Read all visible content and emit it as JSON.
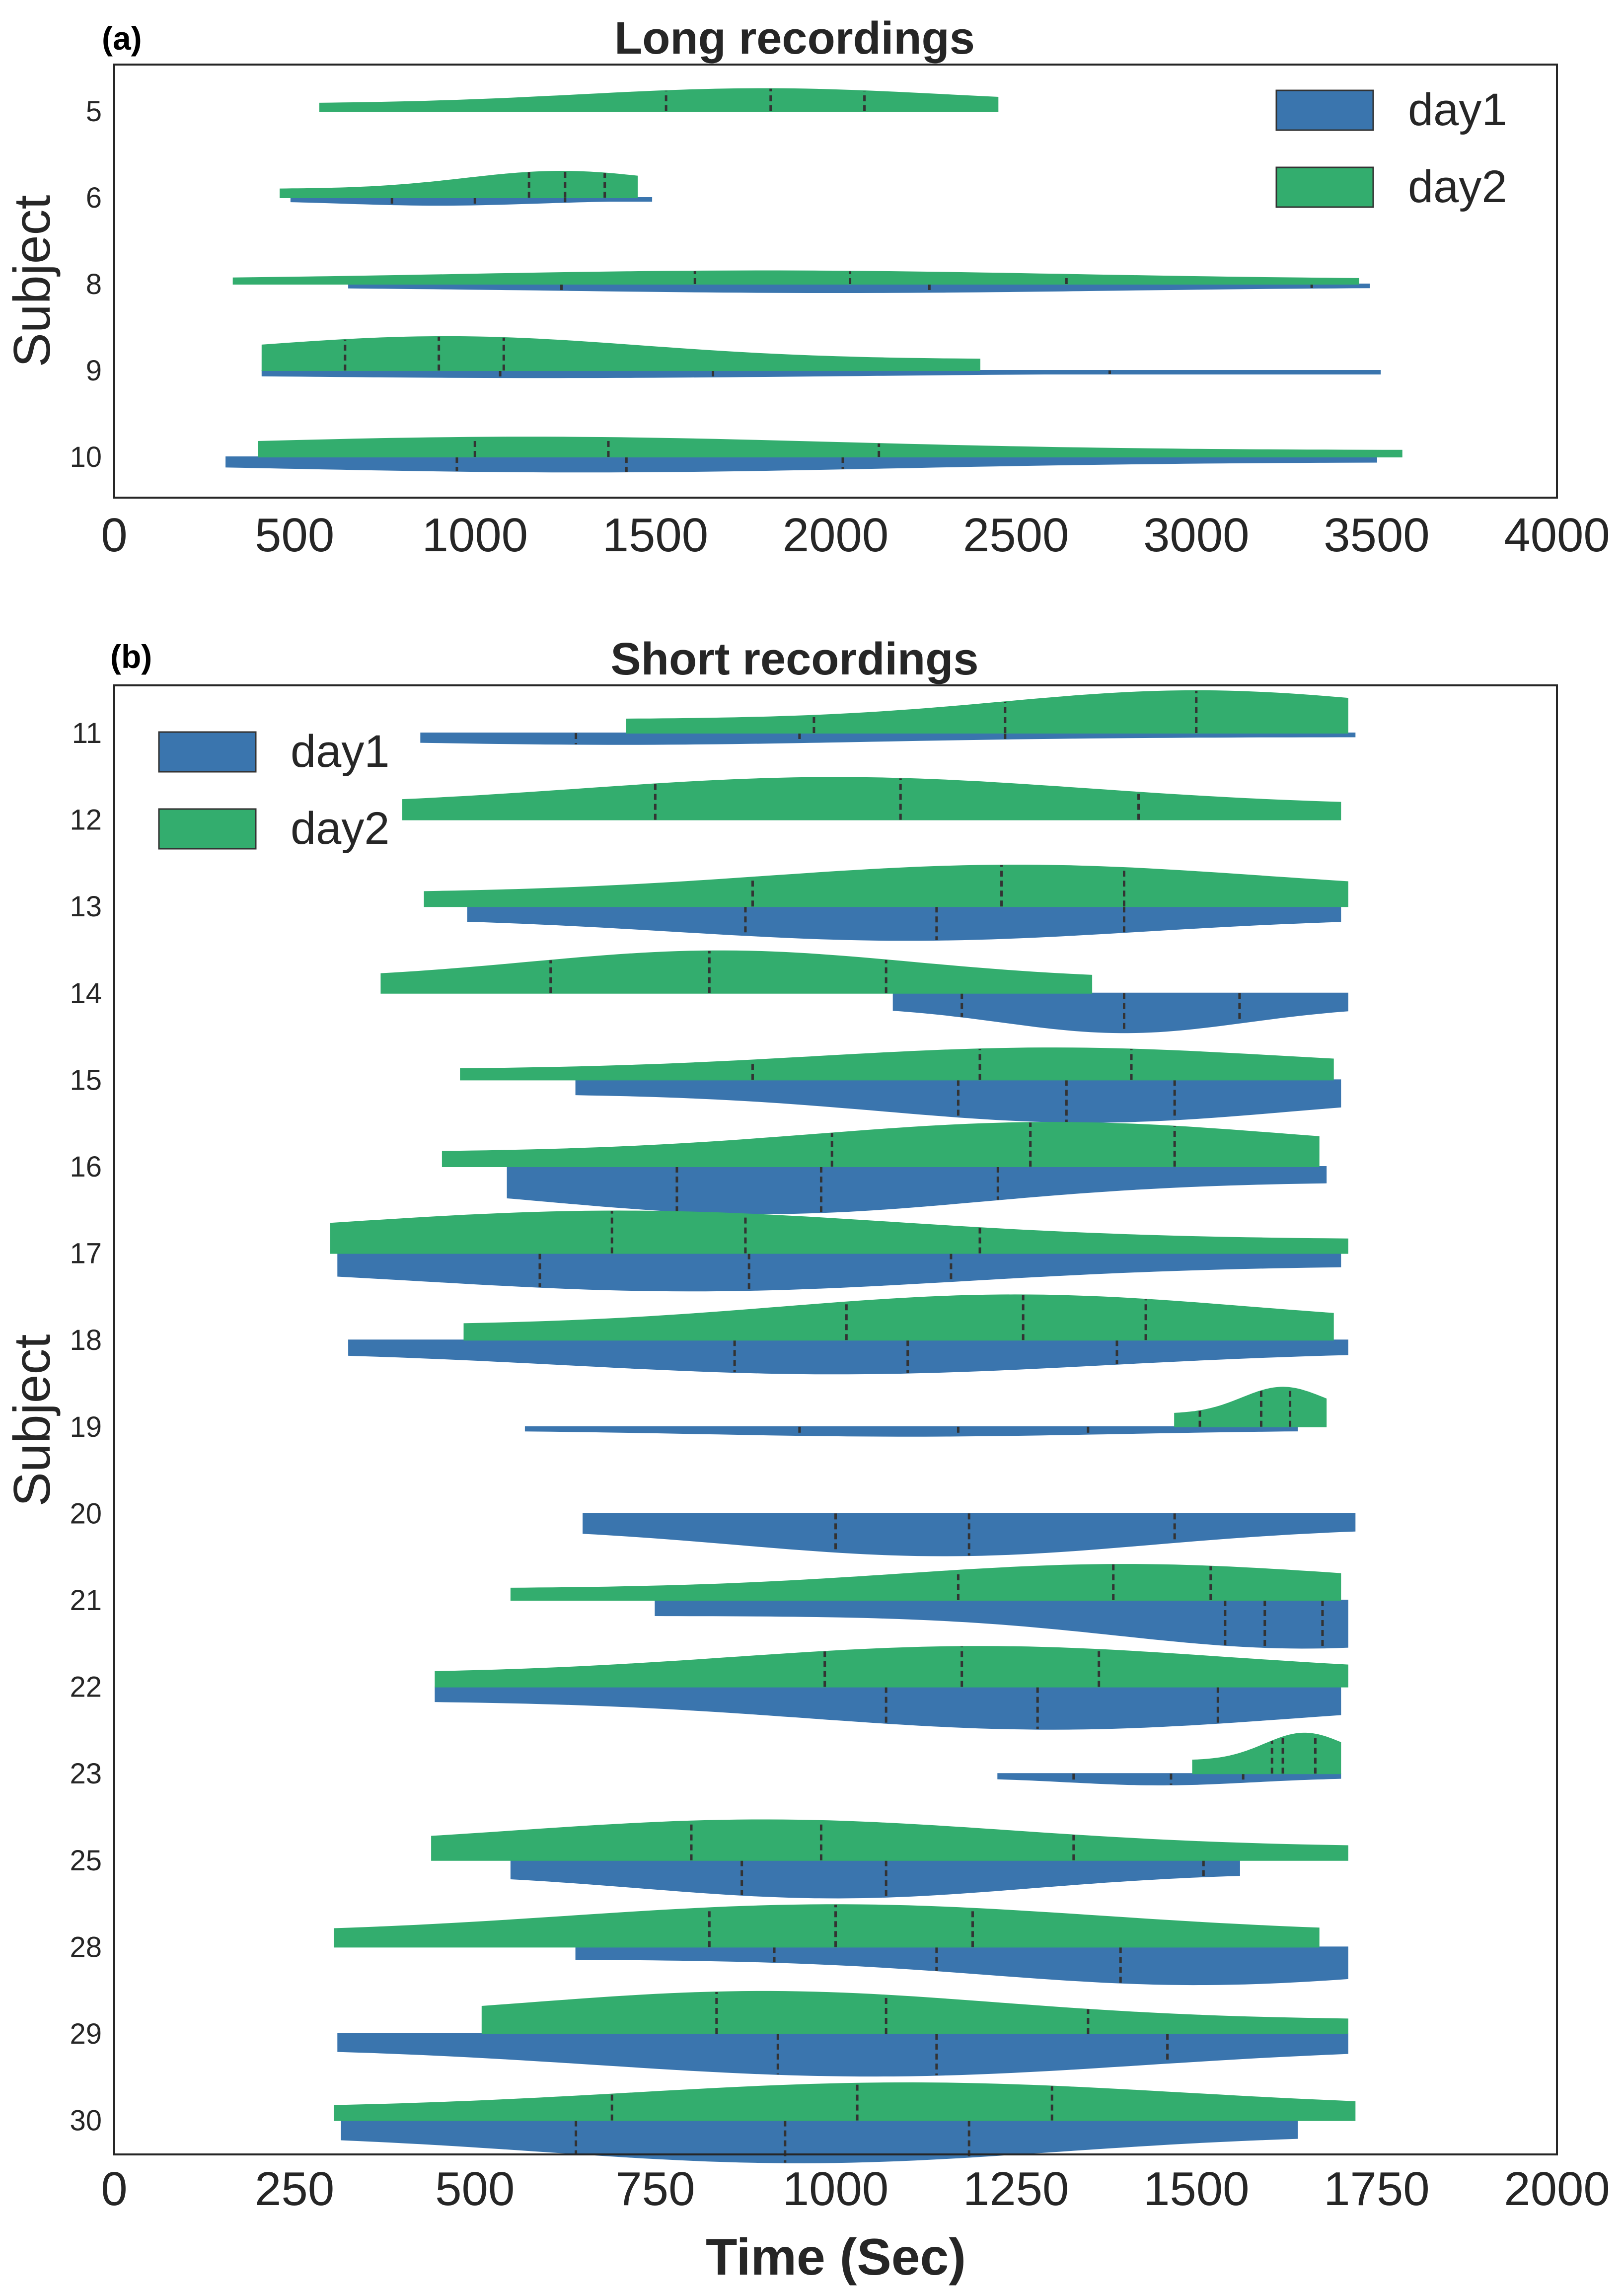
{
  "figure": {
    "xlabel": "Time (Sec)",
    "colors": {
      "day1": "#3a75ae",
      "day2": "#33ad6e",
      "quartile_line": "#333333",
      "frame": "#262626"
    }
  },
  "chart_data": [
    {
      "type": "violin",
      "panel_label": "(a)",
      "title": "Long recordings",
      "ylabel": "Subject",
      "xlabel": "",
      "xlim": [
        0,
        4000
      ],
      "xticks": [
        0,
        500,
        1000,
        1500,
        2000,
        2500,
        3000,
        3500,
        4000
      ],
      "legend": {
        "position": "top-right",
        "entries": [
          "day1",
          "day2"
        ]
      },
      "categories": [
        "5",
        "6",
        "8",
        "9",
        "10"
      ],
      "series": [
        {
          "name": "day1",
          "violins": [
            null,
            {
              "min": 490,
              "max": 1490,
              "width": 0.08,
              "peak": 900,
              "quartiles": [
                770,
                1000,
                1250
              ]
            },
            {
              "min": 650,
              "max": 3480,
              "width": 0.09,
              "peak": 2000,
              "quartiles": [
                1240,
                2260,
                3320
              ]
            },
            {
              "min": 410,
              "max": 3510,
              "width": 0.075,
              "peak": 1200,
              "quartiles": [
                1070,
                1660,
                2760
              ]
            },
            {
              "min": 310,
              "max": 3500,
              "width": 0.16,
              "peak": 1300,
              "quartiles": [
                950,
                1420,
                2020
              ]
            }
          ]
        },
        {
          "name": "day2",
          "violins": [
            {
              "min": 570,
              "max": 2450,
              "width": 0.24,
              "peak": 1800,
              "quartiles": [
                1530,
                1820,
                2080
              ]
            },
            {
              "min": 460,
              "max": 1450,
              "width": 0.28,
              "peak": 1240,
              "quartiles": [
                1150,
                1250,
                1360
              ]
            },
            {
              "min": 330,
              "max": 3450,
              "width": 0.14,
              "peak": 1800,
              "quartiles": [
                1610,
                2040,
                2640
              ]
            },
            {
              "min": 410,
              "max": 2400,
              "width": 0.36,
              "peak": 920,
              "quartiles": [
                640,
                900,
                1080
              ]
            },
            {
              "min": 400,
              "max": 3570,
              "width": 0.21,
              "peak": 1150,
              "quartiles": [
                1000,
                1370,
                2120
              ]
            }
          ]
        }
      ]
    },
    {
      "type": "violin",
      "panel_label": "(b)",
      "title": "Short recordings",
      "ylabel": "Subject",
      "xlabel": "Time (Sec)",
      "xlim": [
        0,
        2000
      ],
      "xticks": [
        0,
        250,
        500,
        750,
        1000,
        1250,
        1500,
        1750,
        2000
      ],
      "legend": {
        "position": "top-left",
        "entries": [
          "day1",
          "day2"
        ]
      },
      "categories": [
        "11",
        "12",
        "13",
        "14",
        "15",
        "16",
        "17",
        "18",
        "19",
        "20",
        "21",
        "22",
        "23",
        "25",
        "28",
        "29",
        "30"
      ],
      "series": [
        {
          "name": "day1",
          "violins": [
            {
              "min": 425,
              "max": 1720,
              "width": 0.12,
              "peak": 700,
              "quartiles": [
                640,
                950,
                1235
              ]
            },
            null,
            {
              "min": 490,
              "max": 1700,
              "width": 0.36,
              "peak": 1100,
              "quartiles": [
                875,
                1140,
                1400
              ]
            },
            {
              "min": 1080,
              "max": 1710,
              "width": 0.42,
              "peak": 1400,
              "quartiles": [
                1175,
                1400,
                1560
              ]
            },
            {
              "min": 640,
              "max": 1700,
              "width": 0.45,
              "peak": 1350,
              "quartiles": [
                1170,
                1320,
                1470
              ]
            },
            {
              "min": 545,
              "max": 1680,
              "width": 0.5,
              "peak": 900,
              "quartiles": [
                780,
                980,
                1225
              ]
            },
            {
              "min": 310,
              "max": 1700,
              "width": 0.4,
              "peak": 800,
              "quartiles": [
                590,
                880,
                1160
              ]
            },
            {
              "min": 325,
              "max": 1710,
              "width": 0.36,
              "peak": 1000,
              "quartiles": [
                860,
                1100,
                1390
              ]
            },
            {
              "min": 570,
              "max": 1640,
              "width": 0.1,
              "peak": 1100,
              "quartiles": [
                950,
                1170,
                1350
              ]
            },
            {
              "min": 650,
              "max": 1720,
              "width": 0.45,
              "peak": 1150,
              "quartiles": [
                1000,
                1185,
                1470
              ]
            },
            {
              "min": 750,
              "max": 1710,
              "width": 0.51,
              "peak": 1650,
              "quartiles": [
                1540,
                1595,
                1675
              ]
            },
            {
              "min": 445,
              "max": 1700,
              "width": 0.45,
              "peak": 1300,
              "quartiles": [
                1070,
                1280,
                1530
              ]
            },
            {
              "min": 1225,
              "max": 1700,
              "width": 0.12,
              "peak": 1450,
              "quartiles": [
                1330,
                1465,
                1565
              ]
            },
            {
              "min": 550,
              "max": 1560,
              "width": 0.4,
              "peak": 1000,
              "quartiles": [
                870,
                1070,
                1510
              ]
            },
            {
              "min": 640,
              "max": 1710,
              "width": 0.4,
              "peak": 1500,
              "quartiles": [
                915,
                1140,
                1395
              ]
            },
            {
              "min": 310,
              "max": 1710,
              "width": 0.45,
              "peak": 1050,
              "quartiles": [
                920,
                1140,
                1460
              ]
            },
            {
              "min": 315,
              "max": 1640,
              "width": 0.45,
              "peak": 950,
              "quartiles": [
                640,
                930,
                1185
              ]
            }
          ]
        },
        {
          "name": "day2",
          "violins": [
            {
              "min": 710,
              "max": 1710,
              "width": 0.45,
              "peak": 1500,
              "quartiles": [
                970,
                1235,
                1500
              ]
            },
            {
              "min": 400,
              "max": 1700,
              "width": 0.45,
              "peak": 1000,
              "quartiles": [
                750,
                1090,
                1420
              ]
            },
            {
              "min": 430,
              "max": 1710,
              "width": 0.44,
              "peak": 1250,
              "quartiles": [
                885,
                1230,
                1400
              ]
            },
            {
              "min": 370,
              "max": 1355,
              "width": 0.45,
              "peak": 840,
              "quartiles": [
                605,
                825,
                1070
              ]
            },
            {
              "min": 480,
              "max": 1690,
              "width": 0.34,
              "peak": 1300,
              "quartiles": [
                885,
                1200,
                1410
              ]
            },
            {
              "min": 455,
              "max": 1670,
              "width": 0.47,
              "peak": 1300,
              "quartiles": [
                995,
                1270,
                1470
              ]
            },
            {
              "min": 300,
              "max": 1710,
              "width": 0.45,
              "peak": 700,
              "quartiles": [
                690,
                875,
                1200
              ]
            },
            {
              "min": 485,
              "max": 1690,
              "width": 0.48,
              "peak": 1250,
              "quartiles": [
                1015,
                1260,
                1430
              ]
            },
            {
              "min": 1470,
              "max": 1680,
              "width": 0.42,
              "peak": 1620,
              "quartiles": [
                1505,
                1590,
                1630
              ]
            },
            null,
            {
              "min": 550,
              "max": 1700,
              "width": 0.38,
              "peak": 1400,
              "quartiles": [
                1170,
                1385,
                1520
              ]
            },
            {
              "min": 445,
              "max": 1710,
              "width": 0.43,
              "peak": 1200,
              "quartiles": [
                985,
                1175,
                1365
              ]
            },
            {
              "min": 1495,
              "max": 1700,
              "width": 0.43,
              "peak": 1650,
              "quartiles": [
                1605,
                1620,
                1665
              ]
            },
            {
              "min": 440,
              "max": 1710,
              "width": 0.43,
              "peak": 900,
              "quartiles": [
                800,
                980,
                1330
              ]
            },
            {
              "min": 305,
              "max": 1670,
              "width": 0.45,
              "peak": 1000,
              "quartiles": [
                825,
                1000,
                1190
              ]
            },
            {
              "min": 510,
              "max": 1710,
              "width": 0.45,
              "peak": 900,
              "quartiles": [
                835,
                1070,
                1350
              ]
            },
            {
              "min": 305,
              "max": 1720,
              "width": 0.4,
              "peak": 1100,
              "quartiles": [
                690,
                1030,
                1300
              ]
            }
          ]
        }
      ]
    }
  ]
}
